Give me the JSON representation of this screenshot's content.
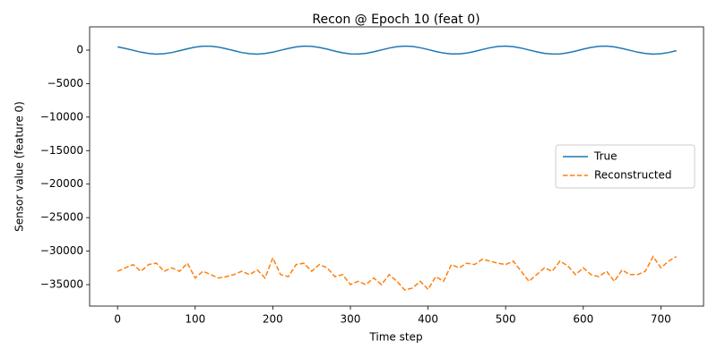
{
  "chart_data": {
    "type": "line",
    "title": "Recon @ Epoch 10 (feat 0)",
    "x_label": "Time step",
    "y_label": "Sensor value (feature 0)",
    "x": [
      0,
      10,
      20,
      30,
      40,
      50,
      60,
      70,
      80,
      90,
      100,
      110,
      120,
      130,
      140,
      150,
      160,
      170,
      180,
      190,
      200,
      210,
      220,
      230,
      240,
      250,
      260,
      270,
      280,
      290,
      300,
      310,
      320,
      330,
      340,
      350,
      360,
      370,
      380,
      390,
      400,
      410,
      420,
      430,
      440,
      450,
      460,
      470,
      480,
      490,
      500,
      510,
      520,
      530,
      540,
      550,
      560,
      570,
      580,
      590,
      600,
      610,
      620,
      630,
      640,
      650,
      660,
      670,
      680,
      690,
      700,
      710,
      720
    ],
    "series": [
      {
        "name": "True",
        "color": "#1f77b4",
        "dash": "solid",
        "values": [
          480,
          255,
          -30,
          -308,
          -515,
          -599,
          -542,
          -358,
          -86,
          203,
          446,
          583,
          583,
          446,
          203,
          -86,
          -358,
          -542,
          -599,
          -515,
          -308,
          -30,
          255,
          480,
          593,
          565,
          403,
          145,
          -146,
          -403,
          -565,
          -593,
          -482,
          -255,
          30,
          308,
          515,
          599,
          543,
          359,
          87,
          -203,
          -446,
          -583,
          -583,
          -446,
          -203,
          86,
          358,
          542,
          599,
          515,
          309,
          30,
          -256,
          -481,
          -593,
          -565,
          -402,
          -146,
          145,
          403,
          565,
          593,
          480,
          255,
          -30,
          -308,
          -515,
          -599,
          -542,
          -358,
          -86
        ]
      },
      {
        "name": "Reconstructed",
        "color": "#ff7f0e",
        "dash": "dashed",
        "values": [
          -33000,
          -32500,
          -32000,
          -33000,
          -32000,
          -31800,
          -33000,
          -32500,
          -33000,
          -31800,
          -34000,
          -33000,
          -33500,
          -34000,
          -33800,
          -33500,
          -33000,
          -33500,
          -32800,
          -34000,
          -31000,
          -33500,
          -33800,
          -32000,
          -31800,
          -33000,
          -32000,
          -32500,
          -33800,
          -33500,
          -35000,
          -34500,
          -35000,
          -34000,
          -35000,
          -33500,
          -34500,
          -35800,
          -35500,
          -34500,
          -35700,
          -33800,
          -34500,
          -32000,
          -32500,
          -31800,
          -32000,
          -31200,
          -31500,
          -31800,
          -32000,
          -31500,
          -33000,
          -34500,
          -33500,
          -32500,
          -33000,
          -31500,
          -32200,
          -33500,
          -32500,
          -33500,
          -33800,
          -33000,
          -34500,
          -32800,
          -33500,
          -33500,
          -33000,
          -30800,
          -32500,
          -31500,
          -30800
        ]
      }
    ],
    "xlim": [
      -36,
      755
    ],
    "ylim": [
      -38200,
      3470
    ],
    "xticks": [
      0,
      100,
      200,
      300,
      400,
      500,
      600,
      700
    ],
    "yticks": [
      0,
      {
        "value": -5000,
        "label": "−5000"
      },
      {
        "value": -10000,
        "label": "−10000"
      },
      {
        "value": -15000,
        "label": "−15000"
      },
      {
        "value": -20000,
        "label": "−20000"
      },
      {
        "value": -25000,
        "label": "−25000"
      },
      {
        "value": -30000,
        "label": "−30000"
      },
      {
        "value": -35000,
        "label": "−35000"
      }
    ],
    "legend": "center right",
    "grid": false
  }
}
